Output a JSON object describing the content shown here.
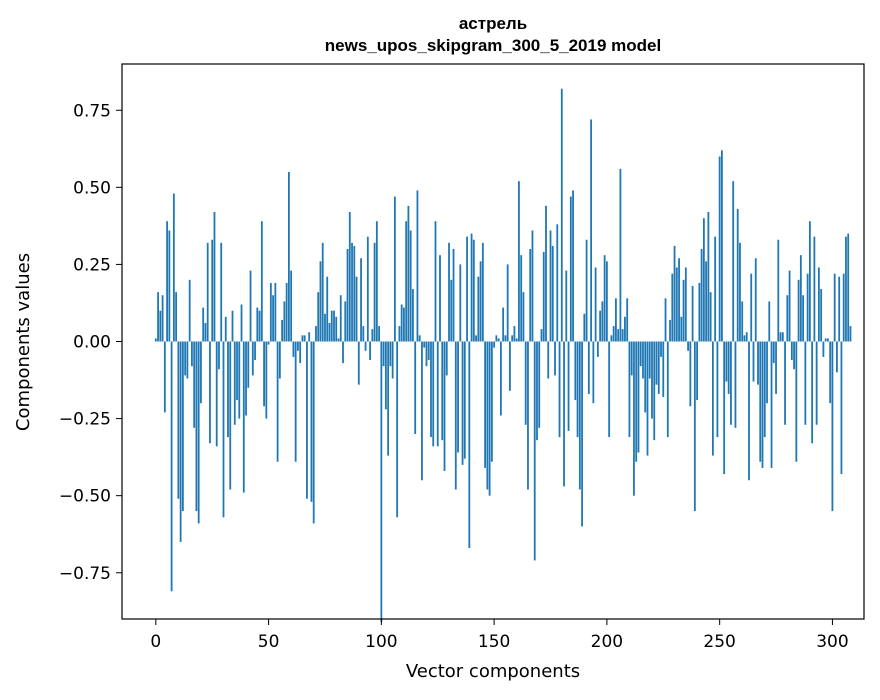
{
  "chart_data": {
    "type": "bar",
    "title": "астрель",
    "subtitle": "news_upos_skipgram_300_5_2019 model",
    "xlabel": "Vector components",
    "ylabel": "Components values",
    "xlim": [
      -15,
      314
    ],
    "ylim": [
      -0.9,
      0.9
    ],
    "xticks": [
      0,
      50,
      100,
      150,
      200,
      250,
      300
    ],
    "yticks": [
      -0.75,
      -0.5,
      -0.25,
      0.0,
      0.25,
      0.5,
      0.75
    ],
    "ytick_labels": [
      "−0.75",
      "−0.50",
      "−0.25",
      "0.00",
      "0.25",
      "0.50",
      "0.75"
    ],
    "bar_color": "#1f77b4",
    "grid": false,
    "x_start": 0,
    "values": [
      0.01,
      0.16,
      0.1,
      0.15,
      -0.23,
      0.39,
      0.36,
      -0.81,
      0.48,
      0.16,
      -0.51,
      -0.65,
      -0.55,
      -0.11,
      -0.12,
      0.2,
      -0.08,
      -0.28,
      -0.55,
      -0.59,
      -0.2,
      0.11,
      0.06,
      0.32,
      -0.33,
      0.33,
      0.42,
      -0.34,
      -0.09,
      0.32,
      -0.57,
      0.08,
      -0.31,
      -0.48,
      0.1,
      -0.27,
      -0.19,
      -0.25,
      0.12,
      -0.49,
      -0.24,
      -0.15,
      0.23,
      -0.11,
      -0.06,
      0.11,
      0.1,
      0.39,
      -0.21,
      -0.25,
      -0.01,
      0.19,
      0.15,
      0.19,
      -0.39,
      -0.12,
      0.07,
      0.13,
      0.19,
      0.55,
      0.23,
      -0.05,
      -0.39,
      -0.03,
      -0.07,
      0.02,
      0.02,
      -0.51,
      0.03,
      -0.52,
      -0.59,
      0.05,
      0.16,
      0.26,
      0.32,
      0.09,
      0.21,
      0.06,
      0.1,
      0.1,
      0.08,
      0.01,
      0.15,
      -0.07,
      0.13,
      0.3,
      0.42,
      0.32,
      0.31,
      0.21,
      -0.14,
      0.27,
      0.05,
      -0.03,
      0.34,
      -0.06,
      0.04,
      0.32,
      0.39,
      0.05,
      -0.91,
      -0.08,
      -0.22,
      -0.37,
      -0.08,
      -0.12,
      0.47,
      -0.57,
      0.05,
      0.12,
      0.11,
      0.39,
      0.44,
      0.36,
      0.17,
      -0.3,
      0.49,
      0.02,
      -0.45,
      -0.02,
      -0.08,
      -0.06,
      -0.31,
      -0.34,
      0.39,
      -0.34,
      0.28,
      -0.32,
      -0.42,
      -0.11,
      0.32,
      0.2,
      0.3,
      -0.48,
      -0.36,
      0.25,
      -0.4,
      -0.38,
      0.34,
      -0.67,
      0.35,
      0.33,
      0.02,
      0.21,
      0.26,
      0.32,
      -0.41,
      -0.48,
      -0.5,
      -0.39,
      -0.02,
      0.02,
      0.01,
      -0.24,
      0.11,
      0.02,
      0.25,
      -0.16,
      0.02,
      0.05,
      0.01,
      0.52,
      0.28,
      0.16,
      -0.27,
      -0.48,
      0.3,
      0.36,
      -0.71,
      -0.32,
      -0.28,
      0.04,
      0.29,
      0.44,
      -0.12,
      0.36,
      0.31,
      -0.11,
      0.38,
      -0.31,
      0.82,
      -0.47,
      0.23,
      -0.29,
      0.47,
      0.49,
      -0.19,
      -0.31,
      -0.48,
      -0.6,
      0.09,
      0.33,
      -0.17,
      0.72,
      -0.2,
      0.24,
      -0.05,
      0.1,
      0.13,
      0.28,
      0.26,
      -0.31,
      0.02,
      0.05,
      0.14,
      0.04,
      0.56,
      0.04,
      0.08,
      0.14,
      -0.31,
      -0.11,
      -0.5,
      -0.39,
      -0.36,
      -0.08,
      -0.12,
      -0.23,
      -0.37,
      -0.12,
      -0.25,
      -0.32,
      -0.14,
      -0.17,
      -0.05,
      -0.18,
      0.14,
      -0.31,
      0.07,
      0.22,
      0.31,
      0.24,
      0.27,
      0.08,
      0.2,
      0.24,
      -0.03,
      -0.21,
      0.18,
      -0.55,
      -0.19,
      0.19,
      0.3,
      0.4,
      0.26,
      0.42,
      0.16,
      -0.37,
      0.34,
      -0.31,
      0.6,
      0.62,
      -0.43,
      -0.13,
      -0.17,
      -0.27,
      0.52,
      -0.28,
      0.43,
      0.32,
      0.13,
      0.02,
      0.03,
      -0.45,
      0.22,
      -0.13,
      0.27,
      -0.14,
      -0.39,
      -0.41,
      -0.31,
      -0.2,
      0.13,
      -0.41,
      -0.07,
      -0.17,
      0.33,
      0.03,
      0.03,
      -0.27,
      0.15,
      0.23,
      -0.06,
      -0.09,
      -0.39,
      0.2,
      0.28,
      0.15,
      -0.27,
      0.22,
      0.39,
      -0.33,
      0.34,
      -0.27,
      0.24,
      0.17,
      -0.05,
      0.01,
      0.01,
      -0.2,
      -0.55,
      0.22,
      -0.1,
      0.21,
      -0.43,
      0.22,
      0.34,
      0.35,
      0.05
    ]
  }
}
